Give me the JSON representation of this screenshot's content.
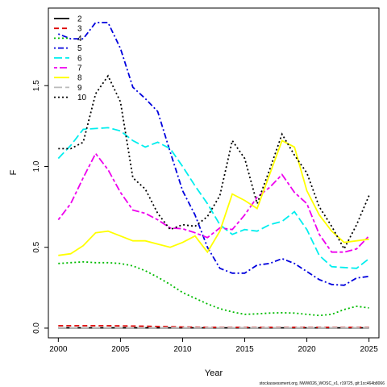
{
  "chart_data": {
    "type": "line",
    "xlabel": "Year",
    "ylabel": "F",
    "xlim": [
      1999.2,
      2025.8
    ],
    "ylim": [
      -0.06,
      1.98
    ],
    "x_ticks": [
      "2000",
      "2005",
      "2010",
      "2015",
      "2020",
      "2025"
    ],
    "y_ticks": [
      "0.0",
      "0.5",
      "1.0",
      "1.5"
    ],
    "x": [
      2000,
      2001,
      2002,
      2003,
      2004,
      2005,
      2006,
      2007,
      2008,
      2009,
      2010,
      2011,
      2012,
      2013,
      2014,
      2015,
      2016,
      2017,
      2018,
      2019,
      2020,
      2021,
      2022,
      2023,
      2024,
      2025
    ],
    "legend_position": "top-left",
    "series": [
      {
        "name": "2",
        "color": "#000000",
        "dash": "solid",
        "values": [
          0.002,
          0.002,
          0.002,
          0.002,
          0.002,
          0.002,
          0.002,
          0.002,
          0.002,
          0.002,
          0.002,
          0.002,
          0.002,
          0.002,
          0.002,
          0.002,
          0.002,
          0.002,
          0.002,
          0.002,
          0.002,
          0.002,
          0.002,
          0.002,
          0.002,
          0.002
        ]
      },
      {
        "name": "3",
        "color": "#dd0000",
        "dash": "dashed",
        "values": [
          0.015,
          0.015,
          0.015,
          0.015,
          0.015,
          0.014,
          0.013,
          0.012,
          0.01,
          0.009,
          0.007,
          0.006,
          0.005,
          0.005,
          0.005,
          0.005,
          0.005,
          0.005,
          0.005,
          0.005,
          0.005,
          0.005,
          0.005,
          0.005,
          0.005,
          0.005
        ]
      },
      {
        "name": "4",
        "color": "#00bb00",
        "dash": "dotted",
        "values": [
          0.4,
          0.405,
          0.41,
          0.405,
          0.405,
          0.4,
          0.385,
          0.355,
          0.315,
          0.27,
          0.22,
          0.185,
          0.15,
          0.12,
          0.1,
          0.085,
          0.088,
          0.093,
          0.095,
          0.093,
          0.085,
          0.078,
          0.085,
          0.115,
          0.135,
          0.125
        ]
      },
      {
        "name": "5",
        "color": "#0000dd",
        "dash": "dotdash",
        "values": [
          1.82,
          1.79,
          1.79,
          1.89,
          1.89,
          1.73,
          1.49,
          1.42,
          1.34,
          1.09,
          0.85,
          0.7,
          0.5,
          0.37,
          0.34,
          0.34,
          0.39,
          0.4,
          0.43,
          0.4,
          0.35,
          0.3,
          0.27,
          0.265,
          0.31,
          0.32
        ]
      },
      {
        "name": "6",
        "color": "#00eeee",
        "dash": "longdash",
        "values": [
          1.05,
          1.13,
          1.23,
          1.235,
          1.24,
          1.22,
          1.16,
          1.12,
          1.15,
          1.11,
          1.0,
          0.88,
          0.77,
          0.64,
          0.58,
          0.61,
          0.6,
          0.64,
          0.66,
          0.72,
          0.61,
          0.45,
          0.38,
          0.375,
          0.37,
          0.43
        ]
      },
      {
        "name": "7",
        "color": "#ee00ee",
        "dash": "twodash",
        "values": [
          0.67,
          0.77,
          0.93,
          1.08,
          0.98,
          0.84,
          0.73,
          0.71,
          0.67,
          0.62,
          0.615,
          0.59,
          0.56,
          0.62,
          0.61,
          0.7,
          0.81,
          0.87,
          0.95,
          0.84,
          0.77,
          0.58,
          0.47,
          0.47,
          0.49,
          0.57
        ]
      },
      {
        "name": "8",
        "color": "#ffff00",
        "dash": "solid",
        "values": [
          0.45,
          0.46,
          0.51,
          0.59,
          0.6,
          0.57,
          0.54,
          0.54,
          0.52,
          0.5,
          0.53,
          0.57,
          0.47,
          0.6,
          0.83,
          0.79,
          0.74,
          0.95,
          1.16,
          1.12,
          0.85,
          0.7,
          0.6,
          0.53,
          0.54,
          0.55
        ]
      },
      {
        "name": "9",
        "color": "#bbbbbb",
        "dash": "longdash",
        "values": [
          0.003,
          0.003,
          0.003,
          0.003,
          0.003,
          0.003,
          0.003,
          0.003,
          0.003,
          0.003,
          0.003,
          0.003,
          0.003,
          0.003,
          0.003,
          0.003,
          0.003,
          0.003,
          0.003,
          0.003,
          0.003,
          0.003,
          0.003,
          0.003,
          0.003,
          0.003
        ]
      },
      {
        "name": "10",
        "color": "#000000",
        "dash": "dotted",
        "values": [
          1.11,
          1.11,
          1.15,
          1.45,
          1.56,
          1.4,
          0.93,
          0.86,
          0.71,
          0.61,
          0.64,
          0.63,
          0.69,
          0.82,
          1.16,
          1.05,
          0.77,
          0.98,
          1.2,
          1.07,
          0.96,
          0.75,
          0.63,
          0.49,
          0.64,
          0.82
        ]
      }
    ]
  },
  "footer": {
    "text": "stockassessment.org, NWW026_WOSC_v1, r19725, git:1cc464b8066"
  }
}
